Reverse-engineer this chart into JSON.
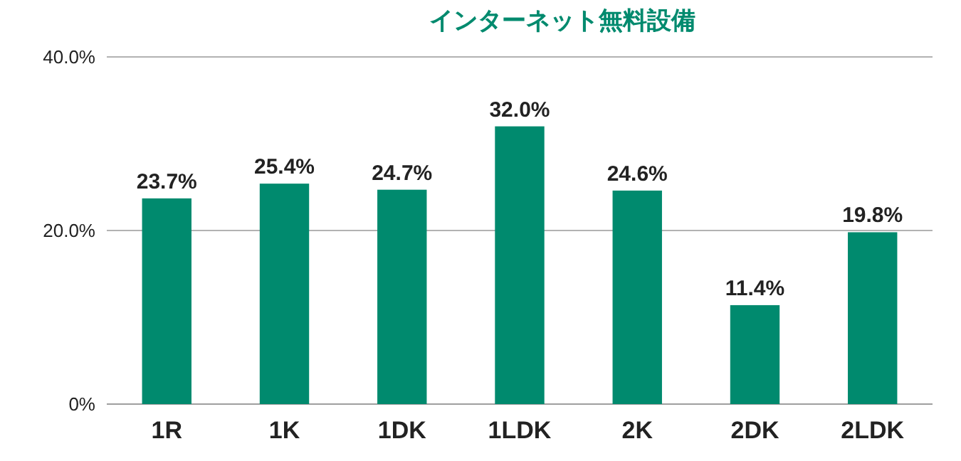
{
  "chart_data": {
    "type": "bar",
    "title": "インターネット無料設備",
    "categories": [
      "1R",
      "1K",
      "1DK",
      "1LDK",
      "2K",
      "2DK",
      "2LDK"
    ],
    "values": [
      23.7,
      25.4,
      24.7,
      32.0,
      24.6,
      11.4,
      19.8
    ],
    "value_labels": [
      "23.7%",
      "25.4%",
      "24.7%",
      "32.0%",
      "24.6%",
      "11.4%",
      "19.8%"
    ],
    "color": "#008a6e",
    "ylim": [
      0,
      40
    ],
    "yticks": [
      {
        "value": 0,
        "label": "0%"
      },
      {
        "value": 20,
        "label": "20.0%"
      },
      {
        "value": 40,
        "label": "40.0%"
      }
    ],
    "grid": "y"
  }
}
